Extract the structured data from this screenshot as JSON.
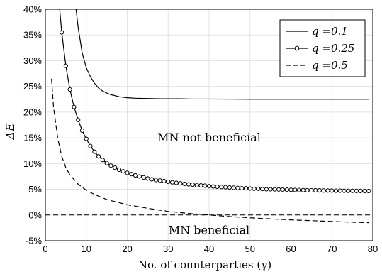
{
  "chart_data": {
    "type": "line",
    "xlabel": "No. of counterparties (γ)",
    "ylabel": "ΔE",
    "xlim": [
      0,
      80
    ],
    "ylim": [
      -5,
      40
    ],
    "xticks": [
      0,
      10,
      20,
      30,
      40,
      50,
      60,
      70,
      80
    ],
    "yticks": [
      -5,
      0,
      5,
      10,
      15,
      20,
      25,
      30,
      35,
      40
    ],
    "ytick_format": "percent",
    "grid": true,
    "legend_position": "top-right",
    "annotations": [
      {
        "text": "MN not beneficial",
        "x": 40,
        "y": 15
      },
      {
        "text": "MN beneficial",
        "x": 40,
        "y": -3
      }
    ],
    "reference_line": {
      "y": 0,
      "style": "dashed"
    },
    "series": [
      {
        "name": "q =0.1",
        "style": "solid",
        "marker": "none",
        "x": [
          7.5,
          8,
          9,
          10,
          11,
          12,
          13,
          14,
          15,
          16,
          18,
          20,
          22,
          25,
          28,
          32,
          36,
          40,
          50,
          60,
          70,
          79
        ],
        "y": [
          40,
          36.5,
          31.5,
          28.6,
          26.9,
          25.6,
          24.7,
          24.1,
          23.7,
          23.4,
          23.0,
          22.8,
          22.7,
          22.65,
          22.6,
          22.6,
          22.55,
          22.55,
          22.5,
          22.5,
          22.5,
          22.5
        ]
      },
      {
        "name": "q =0.25",
        "style": "solid",
        "marker": "circle",
        "x": [
          3.5,
          4,
          5,
          6,
          7,
          8,
          9,
          10,
          11,
          12,
          13,
          14,
          15,
          16,
          17,
          18,
          19,
          20,
          21,
          22,
          23,
          24,
          25,
          26,
          27,
          28,
          29,
          30,
          31,
          32,
          33,
          34,
          35,
          36,
          37,
          38,
          39,
          40,
          41,
          42,
          43,
          44,
          45,
          46,
          47,
          48,
          49,
          50,
          51,
          52,
          53,
          54,
          55,
          56,
          57,
          58,
          59,
          60,
          61,
          62,
          63,
          64,
          65,
          66,
          67,
          68,
          69,
          70,
          71,
          72,
          73,
          74,
          75,
          76,
          77,
          78,
          79
        ],
        "y": [
          40,
          35.5,
          29,
          24.4,
          21,
          18.5,
          16.4,
          14.8,
          13.4,
          12.3,
          11.4,
          10.7,
          10.1,
          9.6,
          9.2,
          8.8,
          8.5,
          8.2,
          7.95,
          7.7,
          7.5,
          7.3,
          7.1,
          6.95,
          6.8,
          6.7,
          6.6,
          6.45,
          6.35,
          6.25,
          6.15,
          6.05,
          5.95,
          5.9,
          5.8,
          5.75,
          5.7,
          5.6,
          5.55,
          5.5,
          5.45,
          5.4,
          5.35,
          5.3,
          5.25,
          5.2,
          5.2,
          5.15,
          5.1,
          5.1,
          5.05,
          5.0,
          5.0,
          4.98,
          4.96,
          4.94,
          4.92,
          4.9,
          4.88,
          4.86,
          4.84,
          4.82,
          4.8,
          4.8,
          4.78,
          4.76,
          4.76,
          4.74,
          4.72,
          4.72,
          4.7,
          4.7,
          4.7,
          4.68,
          4.68,
          4.66,
          4.66
        ]
      },
      {
        "name": "q =0.5",
        "style": "dashed",
        "marker": "none",
        "x": [
          1.5,
          2,
          3,
          4,
          5,
          6,
          8,
          10,
          12,
          15,
          18,
          20,
          25,
          30,
          35,
          40,
          45,
          50,
          55,
          60,
          65,
          70,
          75,
          79
        ],
        "y": [
          26.5,
          21,
          15,
          11.4,
          9.2,
          7.8,
          6.0,
          4.8,
          4.0,
          3.0,
          2.4,
          2.0,
          1.3,
          0.7,
          0.3,
          0.0,
          -0.3,
          -0.55,
          -0.75,
          -0.95,
          -1.1,
          -1.25,
          -1.4,
          -1.5
        ]
      }
    ]
  }
}
